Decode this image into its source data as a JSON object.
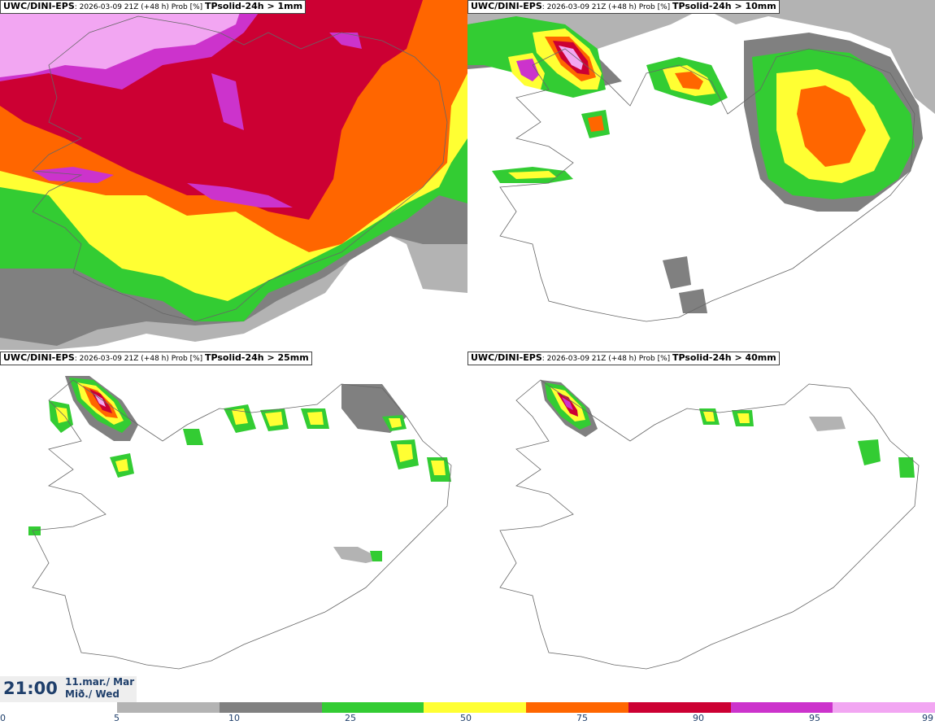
{
  "panels": [
    {
      "source": "UWC/DINI-EPS",
      "meta": ": 2026-03-09 21Z (+48 h) Prob [%] ",
      "parameter": "TPsolid-24h > 1mm"
    },
    {
      "source": "UWC/DINI-EPS",
      "meta": ": 2026-03-09 21Z (+48 h) Prob [%] ",
      "parameter": "TPsolid-24h > 10mm"
    },
    {
      "source": "UWC/DINI-EPS",
      "meta": ": 2026-03-09 21Z (+48 h) Prob [%] ",
      "parameter": "TPsolid-24h > 25mm"
    },
    {
      "source": "UWC/DINI-EPS",
      "meta": ": 2026-03-09 21Z (+48 h) Prob [%] ",
      "parameter": "TPsolid-24h > 40mm"
    }
  ],
  "valid_time": {
    "time": "21:00",
    "date_line1": "11.mar./ Mar",
    "date_line2": "Mið./ Wed"
  },
  "legend": {
    "ticks": [
      "0",
      "5",
      "10",
      "25",
      "50",
      "75",
      "90",
      "95",
      "99"
    ],
    "colors": [
      "#b3b3b3",
      "#808080",
      "#33cc33",
      "#ffff33",
      "#ff6600",
      "#cc0033",
      "#cc33cc",
      "#f2a6f2"
    ]
  }
}
